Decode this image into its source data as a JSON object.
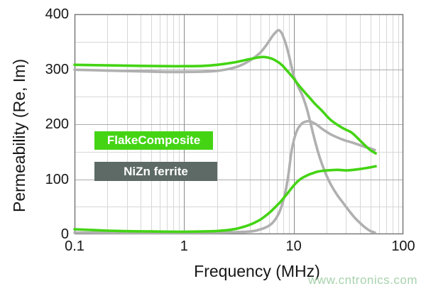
{
  "axes": {
    "y_title": "Permeability (Re, Im)",
    "x_title": "Frequency (MHz)",
    "y_ticks": [
      {
        "label": "400",
        "value": 400
      },
      {
        "label": "300",
        "value": 300
      },
      {
        "label": "200",
        "value": 200
      },
      {
        "label": "100",
        "value": 100
      },
      {
        "label": "0",
        "value": 0
      }
    ],
    "x_ticks": [
      {
        "label": "0.1",
        "value": 0.1
      },
      {
        "label": "1",
        "value": 1
      },
      {
        "label": "10",
        "value": 10
      },
      {
        "label": "100",
        "value": 100
      }
    ]
  },
  "legend": {
    "items": [
      {
        "label": "FlakeComposite",
        "bg": "#44d414",
        "text_color": "#ffffff"
      },
      {
        "label": "NiZn ferrite",
        "bg": "#5d6a66",
        "text_color": "#ffffff"
      }
    ]
  },
  "watermark": {
    "text": "www.cntronics.com",
    "color": "#a8d2ac"
  },
  "colors": {
    "flake_curve": "#44d414",
    "nizn_curve": "#b0b0b0",
    "grid_minor": "#d7d7d7",
    "grid_major_h": "#ababab",
    "grid_major_v": "#8a8a8a",
    "frame": "#7a7a7a",
    "text": "#161616"
  },
  "chart_data": {
    "type": "line",
    "title": "",
    "xlabel": "Frequency (MHz)",
    "ylabel": "Permeability (Re, Im)",
    "x_scale": "log",
    "xlim": [
      0.1,
      100
    ],
    "ylim": [
      0,
      400
    ],
    "grid": true,
    "y_major_step": 100,
    "y_minor_step": 50,
    "legend_position": "inside-left",
    "series": [
      {
        "name": "NiZn ferrite (Re)",
        "color": "#b0b0b0",
        "points": [
          [
            0.1,
            299
          ],
          [
            0.2,
            297.5
          ],
          [
            0.4,
            296
          ],
          [
            0.7,
            295
          ],
          [
            1,
            295
          ],
          [
            1.5,
            295.5
          ],
          [
            2,
            297
          ],
          [
            2.5,
            300
          ],
          [
            3,
            304
          ],
          [
            3.5,
            309.5
          ],
          [
            4,
            316
          ],
          [
            4.5,
            323
          ],
          [
            5,
            331
          ],
          [
            5.5,
            341
          ],
          [
            6,
            352
          ],
          [
            6.5,
            362
          ],
          [
            7,
            369
          ],
          [
            7.3,
            371
          ],
          [
            7.7,
            367
          ],
          [
            8,
            360
          ],
          [
            8.5,
            345
          ],
          [
            9,
            327
          ],
          [
            9.5,
            307
          ],
          [
            10,
            288
          ],
          [
            10.5,
            277
          ],
          [
            11,
            268
          ],
          [
            11.5,
            260
          ],
          [
            12,
            252
          ],
          [
            13,
            232
          ],
          [
            14,
            208
          ],
          [
            15,
            184
          ],
          [
            16,
            162
          ],
          [
            17,
            144
          ],
          [
            18,
            129
          ],
          [
            19,
            117
          ],
          [
            20,
            106
          ],
          [
            22,
            89
          ],
          [
            25,
            71
          ],
          [
            28,
            58
          ],
          [
            30,
            50
          ],
          [
            35,
            33
          ],
          [
            40,
            21
          ],
          [
            45,
            12
          ],
          [
            50,
            6
          ],
          [
            55,
            3
          ]
        ]
      },
      {
        "name": "NiZn ferrite (Im)",
        "color": "#b0b0b0",
        "points": [
          [
            0.1,
            3
          ],
          [
            0.3,
            2.5
          ],
          [
            0.7,
            2.5
          ],
          [
            1,
            2.5
          ],
          [
            1.5,
            2.8
          ],
          [
            2,
            3
          ],
          [
            2.5,
            3.3
          ],
          [
            3,
            3.8
          ],
          [
            3.5,
            4.3
          ],
          [
            4,
            5
          ],
          [
            4.5,
            6.5
          ],
          [
            5,
            9
          ],
          [
            5.5,
            12
          ],
          [
            6,
            16
          ],
          [
            6.5,
            22
          ],
          [
            7,
            31
          ],
          [
            7.5,
            43
          ],
          [
            8,
            60
          ],
          [
            8.5,
            82
          ],
          [
            9,
            112
          ],
          [
            9.5,
            148
          ],
          [
            10,
            170
          ],
          [
            10.5,
            184
          ],
          [
            11,
            193
          ],
          [
            11.5,
            198
          ],
          [
            12,
            202
          ],
          [
            13,
            205
          ],
          [
            14,
            205.5
          ],
          [
            15,
            203
          ],
          [
            16,
            200
          ],
          [
            17,
            196
          ],
          [
            18,
            192
          ],
          [
            20,
            186
          ],
          [
            22,
            181
          ],
          [
            25,
            176
          ],
          [
            28,
            172
          ],
          [
            30,
            170
          ],
          [
            35,
            166
          ],
          [
            40,
            162
          ],
          [
            45,
            158.5
          ],
          [
            50,
            156
          ],
          [
            55,
            153
          ]
        ]
      },
      {
        "name": "FlakeComposite (Re)",
        "color": "#44d414",
        "points": [
          [
            0.1,
            308
          ],
          [
            0.2,
            307
          ],
          [
            0.4,
            306
          ],
          [
            0.7,
            305.5
          ],
          [
            1,
            305.5
          ],
          [
            1.5,
            306
          ],
          [
            2,
            308
          ],
          [
            2.5,
            310.5
          ],
          [
            3,
            313
          ],
          [
            3.5,
            316
          ],
          [
            4,
            318.5
          ],
          [
            4.5,
            320.5
          ],
          [
            5,
            322
          ],
          [
            5.5,
            322
          ],
          [
            6,
            320.5
          ],
          [
            6.5,
            318
          ],
          [
            7,
            314.5
          ],
          [
            7.5,
            310.5
          ],
          [
            8,
            305.5
          ],
          [
            8.5,
            299.5
          ],
          [
            9,
            294
          ],
          [
            9.5,
            288.5
          ],
          [
            10,
            283
          ],
          [
            11,
            272
          ],
          [
            12,
            263
          ],
          [
            13,
            255
          ],
          [
            14,
            248
          ],
          [
            15,
            241
          ],
          [
            16,
            235
          ],
          [
            17,
            230
          ],
          [
            18,
            225
          ],
          [
            19,
            220
          ],
          [
            20,
            215
          ],
          [
            22,
            207
          ],
          [
            25,
            199
          ],
          [
            28,
            193
          ],
          [
            30,
            190
          ],
          [
            33,
            186
          ],
          [
            36,
            180
          ],
          [
            40,
            171
          ],
          [
            45,
            161
          ],
          [
            50,
            153
          ],
          [
            56,
            147
          ]
        ]
      },
      {
        "name": "FlakeComposite (Im)",
        "color": "#44d414",
        "points": [
          [
            0.1,
            9
          ],
          [
            0.2,
            6.5
          ],
          [
            0.3,
            5.5
          ],
          [
            0.5,
            5
          ],
          [
            0.7,
            4.7
          ],
          [
            1,
            4.5
          ],
          [
            1.5,
            5
          ],
          [
            2,
            6
          ],
          [
            2.5,
            7.5
          ],
          [
            3,
            10
          ],
          [
            3.5,
            13.5
          ],
          [
            4,
            17.5
          ],
          [
            4.5,
            22
          ],
          [
            5,
            27
          ],
          [
            5.5,
            33
          ],
          [
            6,
            39
          ],
          [
            6.5,
            45.5
          ],
          [
            7,
            52
          ],
          [
            7.5,
            58
          ],
          [
            8,
            64.5
          ],
          [
            8.5,
            71
          ],
          [
            9,
            77
          ],
          [
            9.5,
            83
          ],
          [
            10,
            88.5
          ],
          [
            10.5,
            93
          ],
          [
            11,
            97
          ],
          [
            12,
            102.5
          ],
          [
            13,
            106
          ],
          [
            14,
            109
          ],
          [
            15,
            111
          ],
          [
            16,
            113
          ],
          [
            18,
            115
          ],
          [
            20,
            116
          ],
          [
            25,
            117
          ],
          [
            30,
            116
          ],
          [
            35,
            117
          ],
          [
            40,
            118.5
          ],
          [
            45,
            120
          ],
          [
            50,
            121.5
          ],
          [
            56,
            123.5
          ]
        ]
      }
    ]
  }
}
